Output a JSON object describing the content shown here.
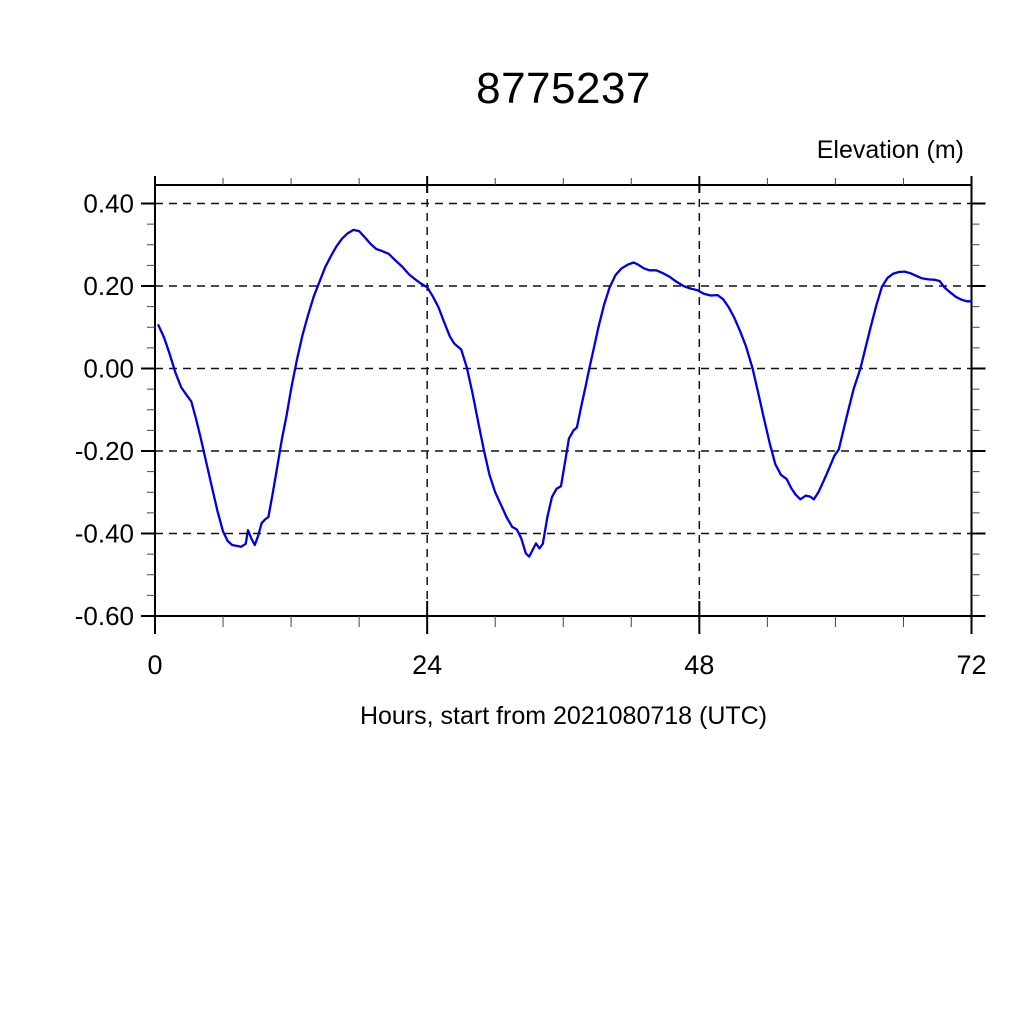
{
  "page": {
    "background": "#ffffff"
  },
  "chart_data": {
    "type": "line",
    "title": "8775237",
    "xlabel": "Hours, start from 2021080718 (UTC)",
    "ylabel": "Elevation (m)",
    "x_range": [
      0,
      72
    ],
    "y_range": [
      -0.6,
      0.445
    ],
    "x_major_ticks": [
      0,
      24,
      48,
      72
    ],
    "x_tick_labels": [
      "0",
      "24",
      "48",
      "72"
    ],
    "x_minor_tick_step": 6,
    "y_major_ticks": [
      0.4,
      0.2,
      0,
      -0.2,
      -0.4,
      -0.6
    ],
    "y_tick_labels": [
      "0.40",
      "0.20",
      "0.00",
      "-0.20",
      "-0.40",
      "-0.60"
    ],
    "y_minor_tick_step": 0.05,
    "grid": {
      "style": "dashed",
      "horizontal_at": [
        0.4,
        0.2,
        0,
        -0.2,
        -0.4
      ],
      "vertical_at": [
        24,
        48
      ]
    },
    "legend": "none",
    "line_color": "#0000e0",
    "frame_color": "#000000",
    "series": [
      {
        "name": "elevation",
        "points": [
          [
            0.3,
            0.105
          ],
          [
            0.8,
            0.075
          ],
          [
            1.3,
            0.035
          ],
          [
            1.8,
            -0.01
          ],
          [
            2.3,
            -0.045
          ],
          [
            2.8,
            -0.065
          ],
          [
            3.2,
            -0.08
          ],
          [
            3.6,
            -0.12
          ],
          [
            4.0,
            -0.165
          ],
          [
            4.5,
            -0.225
          ],
          [
            5.0,
            -0.285
          ],
          [
            5.5,
            -0.345
          ],
          [
            6.0,
            -0.395
          ],
          [
            6.4,
            -0.418
          ],
          [
            6.8,
            -0.428
          ],
          [
            7.2,
            -0.43
          ],
          [
            7.6,
            -0.432
          ],
          [
            8.0,
            -0.425
          ],
          [
            8.2,
            -0.392
          ],
          [
            8.5,
            -0.412
          ],
          [
            8.8,
            -0.428
          ],
          [
            9.1,
            -0.405
          ],
          [
            9.4,
            -0.375
          ],
          [
            9.7,
            -0.366
          ],
          [
            10.0,
            -0.36
          ],
          [
            10.4,
            -0.3
          ],
          [
            10.8,
            -0.235
          ],
          [
            11.2,
            -0.17
          ],
          [
            11.6,
            -0.115
          ],
          [
            12.0,
            -0.05
          ],
          [
            12.5,
            0.02
          ],
          [
            13.0,
            0.08
          ],
          [
            13.5,
            0.13
          ],
          [
            14.0,
            0.175
          ],
          [
            14.5,
            0.21
          ],
          [
            15.0,
            0.245
          ],
          [
            15.5,
            0.272
          ],
          [
            16.0,
            0.296
          ],
          [
            16.5,
            0.315
          ],
          [
            17.0,
            0.328
          ],
          [
            17.5,
            0.336
          ],
          [
            18.0,
            0.333
          ],
          [
            18.5,
            0.318
          ],
          [
            19.0,
            0.302
          ],
          [
            19.5,
            0.29
          ],
          [
            20.0,
            0.285
          ],
          [
            20.6,
            0.278
          ],
          [
            21.2,
            0.262
          ],
          [
            21.8,
            0.247
          ],
          [
            22.4,
            0.228
          ],
          [
            23.0,
            0.215
          ],
          [
            23.5,
            0.205
          ],
          [
            24.0,
            0.197
          ],
          [
            24.5,
            0.175
          ],
          [
            25.0,
            0.148
          ],
          [
            25.5,
            0.112
          ],
          [
            26.0,
            0.078
          ],
          [
            26.4,
            0.06
          ],
          [
            27.0,
            0.046
          ],
          [
            27.5,
            0.002
          ],
          [
            28.0,
            -0.06
          ],
          [
            28.5,
            -0.13
          ],
          [
            29.0,
            -0.198
          ],
          [
            29.5,
            -0.258
          ],
          [
            30.0,
            -0.3
          ],
          [
            30.5,
            -0.33
          ],
          [
            31.0,
            -0.36
          ],
          [
            31.5,
            -0.384
          ],
          [
            31.9,
            -0.39
          ],
          [
            32.3,
            -0.412
          ],
          [
            32.7,
            -0.448
          ],
          [
            33.0,
            -0.456
          ],
          [
            33.3,
            -0.44
          ],
          [
            33.6,
            -0.424
          ],
          [
            33.9,
            -0.436
          ],
          [
            34.2,
            -0.425
          ],
          [
            34.6,
            -0.36
          ],
          [
            35.0,
            -0.312
          ],
          [
            35.4,
            -0.292
          ],
          [
            35.8,
            -0.285
          ],
          [
            36.2,
            -0.22
          ],
          [
            36.5,
            -0.17
          ],
          [
            36.9,
            -0.15
          ],
          [
            37.2,
            -0.143
          ],
          [
            37.6,
            -0.09
          ],
          [
            38.0,
            -0.04
          ],
          [
            38.3,
            0.0
          ],
          [
            38.7,
            0.05
          ],
          [
            39.1,
            0.1
          ],
          [
            39.6,
            0.155
          ],
          [
            40.1,
            0.197
          ],
          [
            40.6,
            0.226
          ],
          [
            41.1,
            0.242
          ],
          [
            41.7,
            0.252
          ],
          [
            42.2,
            0.257
          ],
          [
            42.6,
            0.252
          ],
          [
            43.1,
            0.243
          ],
          [
            43.6,
            0.238
          ],
          [
            44.2,
            0.238
          ],
          [
            44.8,
            0.231
          ],
          [
            45.4,
            0.222
          ],
          [
            46.0,
            0.21
          ],
          [
            46.6,
            0.2
          ],
          [
            47.2,
            0.194
          ],
          [
            47.8,
            0.19
          ],
          [
            48.4,
            0.181
          ],
          [
            49.0,
            0.177
          ],
          [
            49.6,
            0.178
          ],
          [
            50.1,
            0.168
          ],
          [
            50.6,
            0.148
          ],
          [
            51.1,
            0.122
          ],
          [
            51.6,
            0.09
          ],
          [
            52.1,
            0.055
          ],
          [
            52.7,
            0.0
          ],
          [
            53.2,
            -0.06
          ],
          [
            53.7,
            -0.122
          ],
          [
            54.2,
            -0.18
          ],
          [
            54.7,
            -0.232
          ],
          [
            55.2,
            -0.258
          ],
          [
            55.7,
            -0.268
          ],
          [
            56.1,
            -0.29
          ],
          [
            56.5,
            -0.306
          ],
          [
            56.9,
            -0.317
          ],
          [
            57.4,
            -0.308
          ],
          [
            57.8,
            -0.311
          ],
          [
            58.1,
            -0.317
          ],
          [
            58.5,
            -0.3
          ],
          [
            59.0,
            -0.27
          ],
          [
            59.4,
            -0.245
          ],
          [
            59.9,
            -0.212
          ],
          [
            60.3,
            -0.196
          ],
          [
            60.7,
            -0.15
          ],
          [
            61.1,
            -0.105
          ],
          [
            61.6,
            -0.05
          ],
          [
            62.2,
            0.0
          ],
          [
            62.7,
            0.055
          ],
          [
            63.1,
            0.1
          ],
          [
            63.6,
            0.152
          ],
          [
            64.1,
            0.198
          ],
          [
            64.6,
            0.22
          ],
          [
            65.1,
            0.23
          ],
          [
            65.6,
            0.234
          ],
          [
            66.1,
            0.235
          ],
          [
            66.6,
            0.231
          ],
          [
            67.1,
            0.225
          ],
          [
            67.6,
            0.219
          ],
          [
            68.2,
            0.216
          ],
          [
            68.8,
            0.215
          ],
          [
            69.2,
            0.212
          ],
          [
            69.6,
            0.197
          ],
          [
            70.1,
            0.185
          ],
          [
            70.6,
            0.174
          ],
          [
            71.1,
            0.167
          ],
          [
            71.6,
            0.163
          ],
          [
            72.0,
            0.163
          ]
        ]
      }
    ]
  }
}
